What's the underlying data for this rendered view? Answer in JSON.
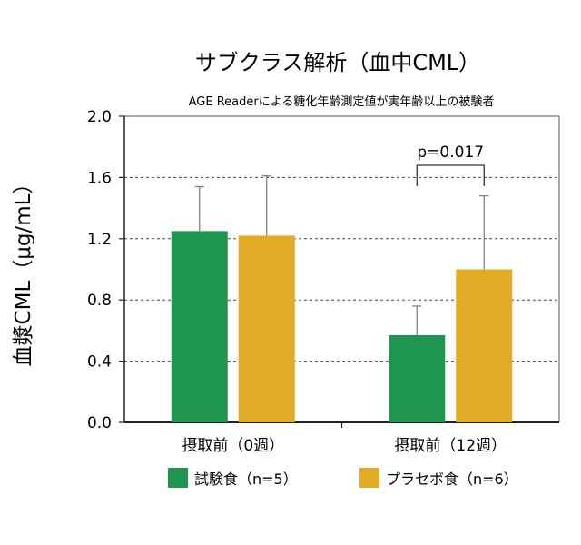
{
  "chart_data": {
    "type": "bar",
    "title": "サブクラス解析（血中CML）",
    "subtitle": "AGE Readerによる糖化年齢測定値が実年齢以上の被験者",
    "ylabel": "血漿CML（μg/mL）",
    "xlabel": "",
    "ylim": [
      0,
      2.0
    ],
    "yticks": [
      "0.0",
      "0.4",
      "0.8",
      "1.2",
      "1.6",
      "2.0"
    ],
    "grid": "horizontal-dashed",
    "categories": [
      "摂取前（0週）",
      "摂取前（12週）"
    ],
    "series": [
      {
        "name": "試験食（n=5）",
        "color": "#1e9650",
        "values": [
          1.25,
          0.57
        ],
        "errors": [
          0.29,
          0.19
        ]
      },
      {
        "name": "プラセボ食（n=6）",
        "color": "#e2ab26",
        "values": [
          1.22,
          1.0
        ],
        "errors": [
          0.39,
          0.48
        ]
      }
    ],
    "annotations": [
      {
        "text": "p=0.017",
        "category_index": 1
      }
    ],
    "legend_position": "bottom"
  }
}
